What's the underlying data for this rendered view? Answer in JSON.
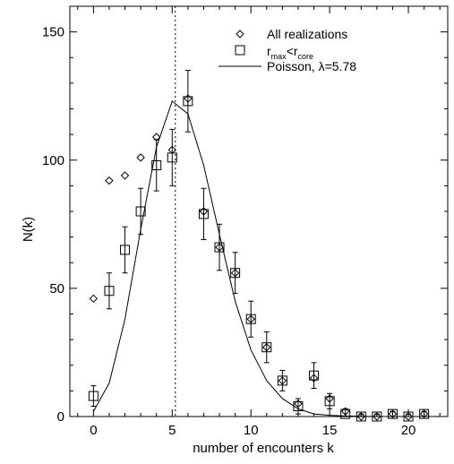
{
  "chart_data": {
    "type": "scatter",
    "title": "",
    "xlabel": "number of encounters k",
    "ylabel": "N(k)",
    "xlim": [
      -1.5,
      22.5
    ],
    "ylim": [
      0,
      160
    ],
    "x_ticks": [
      0,
      5,
      10,
      15,
      20
    ],
    "y_ticks": [
      0,
      50,
      100,
      150
    ],
    "reference_line": {
      "x": 5.2,
      "style": "dotted"
    },
    "legend": {
      "position": "top-right",
      "entries": [
        {
          "marker": "diamond",
          "label": "All realizations"
        },
        {
          "marker": "square",
          "label_main_r1": "r",
          "label_sub_1": "max",
          "label_mid": "<r",
          "label_sub_2": "core"
        },
        {
          "marker": "line",
          "label": "Poisson, λ=5.78"
        }
      ]
    },
    "series": [
      {
        "marker": "diamond",
        "x": [
          0,
          1,
          2,
          3,
          4,
          5,
          6,
          7,
          8,
          9,
          10,
          11,
          12,
          13,
          14,
          15,
          16,
          17,
          18,
          19,
          20,
          21
        ],
        "y": [
          46,
          92,
          94,
          101,
          109,
          104,
          124,
          80,
          66,
          56,
          38,
          27,
          14,
          5,
          15,
          7,
          2,
          0,
          0,
          1,
          0,
          1
        ]
      },
      {
        "marker": "square",
        "x": [
          0,
          1,
          2,
          3,
          4,
          5,
          6,
          7,
          8,
          9,
          10,
          11,
          12,
          13,
          14,
          15,
          16,
          17,
          18,
          19,
          20,
          21
        ],
        "y": [
          8,
          49,
          65,
          80,
          98,
          101,
          123,
          79,
          66,
          56,
          38,
          27,
          14,
          4,
          16,
          6,
          1,
          0,
          0,
          1,
          0,
          1
        ],
        "err": [
          4,
          7,
          9,
          9,
          10,
          11,
          12,
          10,
          9,
          8,
          7,
          6,
          4,
          3,
          5,
          3,
          2,
          1,
          1,
          1,
          1,
          1
        ]
      },
      {
        "marker": "line",
        "x": [
          0,
          1,
          2,
          3,
          4,
          5,
          6,
          7,
          8,
          9,
          10,
          11,
          12,
          13,
          14,
          15,
          16,
          17,
          18,
          19,
          20,
          21
        ],
        "y": [
          2,
          13,
          38,
          73,
          105,
          123,
          118,
          98,
          71,
          45,
          26,
          14,
          7,
          3,
          1,
          0.5,
          0.2,
          0.1,
          0,
          0,
          0,
          0
        ]
      }
    ]
  }
}
